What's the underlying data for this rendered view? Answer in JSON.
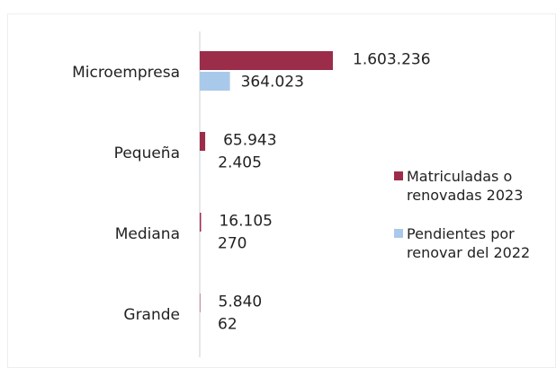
{
  "chart_data": {
    "type": "bar",
    "orientation": "horizontal",
    "categories": [
      "Microempresa",
      "Pequeña",
      "Mediana",
      "Grande"
    ],
    "series": [
      {
        "name": "Matriculadas o renovadas 2023",
        "color": "#9b2d4a",
        "values": [
          1603236,
          65943,
          16105,
          5840
        ],
        "value_labels": [
          "1.603.236",
          "65.943",
          "16.105",
          "5.840"
        ]
      },
      {
        "name": "Pendientes por renovar del 2022",
        "color": "#a9c9ea",
        "values": [
          364023,
          2405,
          270,
          62
        ],
        "value_labels": [
          "364.023",
          "2.405",
          "270",
          "62"
        ]
      }
    ],
    "legend": "right"
  }
}
